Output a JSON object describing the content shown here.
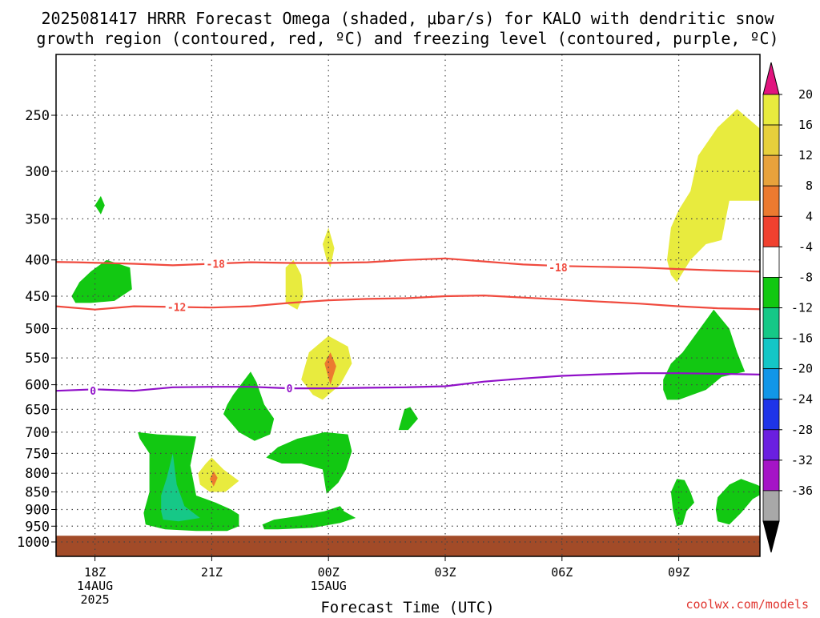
{
  "chart_data": {
    "type": "heatmap",
    "title": "2025081417 HRRR Forecast Omega (shaded, μbar/s) for KALO with dendritic snow growth region (contoured, red, ºC) and freezing level (contoured, purple, ºC)",
    "xlabel": "Forecast Time (UTC)",
    "ylabel": "",
    "source_label": "coolwx.com/models",
    "x_unit": "hours from 17Z 14AUG 2025",
    "x_ticks": [
      {
        "hour": 1,
        "label": "18Z",
        "sub": [
          "14AUG",
          "2025"
        ]
      },
      {
        "hour": 4,
        "label": "21Z",
        "sub": []
      },
      {
        "hour": 7,
        "label": "00Z",
        "sub": [
          "15AUG"
        ]
      },
      {
        "hour": 10,
        "label": "03Z",
        "sub": []
      },
      {
        "hour": 13,
        "label": "06Z",
        "sub": []
      },
      {
        "hour": 16,
        "label": "09Z",
        "sub": []
      }
    ],
    "xlim": [
      0,
      18.5
    ],
    "y_axis": "pressure (hPa), inverted",
    "y_ticks": [
      250,
      300,
      350,
      400,
      450,
      500,
      550,
      600,
      650,
      700,
      750,
      800,
      850,
      900,
      950,
      1000
    ],
    "ylim": [
      1000,
      200
    ],
    "grid": true,
    "colorbar": {
      "labels": [
        "20",
        "16",
        "12",
        "8",
        "4",
        "-4",
        "-8",
        "-12",
        "-16",
        "-20",
        "-24",
        "-28",
        "-32",
        "-36"
      ],
      "colors": [
        "#e8eb3e",
        "#e7d03c",
        "#e8a23c",
        "#ec7a30",
        "#f0412f",
        "#ffffff",
        "#12c812",
        "#16c887",
        "#14c6c6",
        "#1196e8",
        "#1e34e8",
        "#6a1fe0",
        "#a514c6",
        "#a8a8a8"
      ],
      "top_color": "#e1147e",
      "bottom_color": "#000000"
    },
    "omega_shading": [
      {
        "color": "#12c812",
        "points": [
          [
            1.0,
            335
          ],
          [
            1.15,
            325
          ],
          [
            1.25,
            335
          ],
          [
            1.15,
            345
          ]
        ]
      },
      {
        "color": "#12c812",
        "points": [
          [
            0.4,
            450
          ],
          [
            0.6,
            430
          ],
          [
            0.9,
            415
          ],
          [
            1.3,
            400
          ],
          [
            1.9,
            410
          ],
          [
            1.95,
            440
          ],
          [
            1.5,
            457
          ],
          [
            0.9,
            460
          ],
          [
            0.5,
            460
          ]
        ]
      },
      {
        "color": "#e8eb3e",
        "points": [
          [
            5.9,
            410
          ],
          [
            6.1,
            400
          ],
          [
            6.3,
            420
          ],
          [
            6.35,
            450
          ],
          [
            6.2,
            470
          ],
          [
            5.9,
            460
          ]
        ]
      },
      {
        "color": "#e8eb3e",
        "points": [
          [
            6.85,
            380
          ],
          [
            7.0,
            360
          ],
          [
            7.15,
            385
          ],
          [
            7.05,
            410
          ],
          [
            6.95,
            400
          ]
        ]
      },
      {
        "color": "#e8eb3e",
        "points": [
          [
            6.3,
            590
          ],
          [
            6.5,
            540
          ],
          [
            7.0,
            512
          ],
          [
            7.5,
            530
          ],
          [
            7.6,
            560
          ],
          [
            7.3,
            600
          ],
          [
            6.85,
            630
          ],
          [
            6.6,
            620
          ]
        ]
      },
      {
        "color": "#ec7a30",
        "points": [
          [
            6.9,
            560
          ],
          [
            7.05,
            540
          ],
          [
            7.2,
            565
          ],
          [
            7.05,
            600
          ]
        ]
      },
      {
        "color": "#12c812",
        "points": [
          [
            4.3,
            660
          ],
          [
            4.4,
            640
          ],
          [
            4.55,
            620
          ],
          [
            5.0,
            575
          ],
          [
            5.15,
            595
          ],
          [
            5.35,
            640
          ],
          [
            5.6,
            670
          ],
          [
            5.5,
            705
          ],
          [
            5.1,
            720
          ],
          [
            4.7,
            700
          ]
        ]
      },
      {
        "color": "#12c812",
        "points": [
          [
            8.8,
            695
          ],
          [
            8.95,
            650
          ],
          [
            9.1,
            645
          ],
          [
            9.3,
            670
          ],
          [
            9.05,
            695
          ]
        ]
      },
      {
        "color": "#12c812",
        "points": [
          [
            5.4,
            760
          ],
          [
            5.7,
            735
          ],
          [
            6.2,
            715
          ],
          [
            6.9,
            700
          ],
          [
            7.5,
            705
          ],
          [
            7.6,
            745
          ],
          [
            7.45,
            790
          ],
          [
            7.25,
            825
          ],
          [
            6.95,
            855
          ],
          [
            6.85,
            790
          ],
          [
            6.3,
            775
          ],
          [
            5.8,
            775
          ]
        ]
      },
      {
        "color": "#e8eb3e",
        "points": [
          [
            3.65,
            800
          ],
          [
            3.85,
            775
          ],
          [
            4.0,
            760
          ],
          [
            4.3,
            790
          ],
          [
            4.7,
            820
          ],
          [
            4.35,
            850
          ],
          [
            3.95,
            850
          ],
          [
            3.7,
            830
          ]
        ]
      },
      {
        "color": "#ec7a30",
        "points": [
          [
            3.95,
            815
          ],
          [
            4.05,
            795
          ],
          [
            4.15,
            812
          ],
          [
            4.05,
            835
          ]
        ]
      },
      {
        "color": "#12c812",
        "points": [
          [
            2.1,
            700
          ],
          [
            2.6,
            705
          ],
          [
            3.6,
            710
          ],
          [
            3.45,
            780
          ],
          [
            3.6,
            860
          ],
          [
            4.1,
            880
          ],
          [
            4.5,
            900
          ],
          [
            4.7,
            915
          ],
          [
            4.7,
            950
          ],
          [
            4.4,
            965
          ],
          [
            3.6,
            965
          ],
          [
            2.8,
            960
          ],
          [
            2.3,
            945
          ],
          [
            2.25,
            910
          ],
          [
            2.4,
            850
          ],
          [
            2.4,
            750
          ],
          [
            2.15,
            715
          ]
        ]
      },
      {
        "color": "#16c887",
        "points": [
          [
            2.7,
            860
          ],
          [
            2.85,
            810
          ],
          [
            3.0,
            750
          ],
          [
            3.1,
            830
          ],
          [
            3.3,
            890
          ],
          [
            3.7,
            925
          ],
          [
            3.15,
            935
          ],
          [
            2.75,
            930
          ],
          [
            2.7,
            905
          ]
        ]
      },
      {
        "color": "#12c812",
        "points": [
          [
            5.3,
            945
          ],
          [
            5.6,
            930
          ],
          [
            6.2,
            920
          ],
          [
            6.9,
            905
          ],
          [
            7.3,
            890
          ],
          [
            7.4,
            905
          ],
          [
            7.7,
            925
          ],
          [
            7.3,
            940
          ],
          [
            6.6,
            955
          ],
          [
            5.7,
            960
          ],
          [
            5.35,
            960
          ]
        ]
      },
      {
        "color": "#e8eb3e",
        "points": [
          [
            15.7,
            400
          ],
          [
            15.8,
            360
          ],
          [
            16.0,
            340
          ],
          [
            16.3,
            320
          ],
          [
            16.5,
            285
          ],
          [
            17.0,
            260
          ],
          [
            17.5,
            245
          ],
          [
            18.4,
            270
          ],
          [
            18.4,
            330
          ],
          [
            17.3,
            330
          ],
          [
            17.1,
            375
          ],
          [
            16.7,
            380
          ],
          [
            16.3,
            400
          ],
          [
            15.95,
            430
          ],
          [
            15.8,
            420
          ]
        ]
      },
      {
        "color": "#12c812",
        "points": [
          [
            15.6,
            590
          ],
          [
            15.8,
            560
          ],
          [
            16.1,
            540
          ],
          [
            16.6,
            495
          ],
          [
            16.9,
            470
          ],
          [
            17.3,
            500
          ],
          [
            17.5,
            540
          ],
          [
            17.7,
            575
          ],
          [
            17.1,
            585
          ],
          [
            16.7,
            610
          ],
          [
            16.0,
            630
          ],
          [
            15.7,
            630
          ],
          [
            15.6,
            610
          ]
        ]
      },
      {
        "color": "#12c812",
        "points": [
          [
            15.8,
            850
          ],
          [
            15.95,
            815
          ],
          [
            16.15,
            818
          ],
          [
            16.3,
            850
          ],
          [
            16.4,
            880
          ],
          [
            16.2,
            905
          ],
          [
            16.1,
            945
          ],
          [
            15.95,
            950
          ],
          [
            15.85,
            900
          ]
        ]
      },
      {
        "color": "#12c812",
        "points": [
          [
            17.0,
            865
          ],
          [
            17.3,
            830
          ],
          [
            17.6,
            815
          ],
          [
            18.0,
            830
          ],
          [
            18.3,
            845
          ],
          [
            17.9,
            870
          ],
          [
            17.6,
            910
          ],
          [
            17.3,
            945
          ],
          [
            17.0,
            935
          ],
          [
            16.95,
            900
          ]
        ]
      }
    ],
    "contours": [
      {
        "name": "-18",
        "color": "#f04a3e",
        "label": "-18",
        "label_points": [
          [
            4.1,
            405
          ],
          [
            12.9,
            410
          ]
        ],
        "points": [
          [
            -1,
            402
          ],
          [
            0.5,
            403
          ],
          [
            2,
            405
          ],
          [
            3,
            407
          ],
          [
            4,
            405
          ],
          [
            5,
            403
          ],
          [
            6,
            404
          ],
          [
            7,
            404
          ],
          [
            8,
            403
          ],
          [
            9,
            400
          ],
          [
            10,
            398
          ],
          [
            11,
            402
          ],
          [
            12,
            406
          ],
          [
            13,
            408
          ],
          [
            14,
            409
          ],
          [
            15,
            410
          ],
          [
            16,
            412
          ],
          [
            17,
            414
          ],
          [
            18.5,
            416
          ]
        ]
      },
      {
        "name": "-12",
        "color": "#f04a3e",
        "label": "-12",
        "label_points": [
          [
            3.1,
            466
          ]
        ],
        "points": [
          [
            -1,
            462
          ],
          [
            0,
            465
          ],
          [
            1,
            470
          ],
          [
            2,
            465
          ],
          [
            3,
            466
          ],
          [
            4,
            467
          ],
          [
            5,
            465
          ],
          [
            6,
            460
          ],
          [
            7,
            456
          ],
          [
            8,
            454
          ],
          [
            9,
            453
          ],
          [
            10,
            450
          ],
          [
            11,
            449
          ],
          [
            12,
            452
          ],
          [
            13,
            455
          ],
          [
            14,
            458
          ],
          [
            15,
            461
          ],
          [
            16,
            465
          ],
          [
            17,
            468
          ],
          [
            18.5,
            470
          ]
        ]
      },
      {
        "name": "0",
        "color": "#9010c8",
        "label": "0",
        "label_points": [
          [
            0.95,
            612
          ],
          [
            6.0,
            607
          ]
        ],
        "points": [
          [
            -1,
            615
          ],
          [
            0,
            612
          ],
          [
            1,
            609
          ],
          [
            2,
            612
          ],
          [
            3,
            605
          ],
          [
            4,
            604
          ],
          [
            5,
            604
          ],
          [
            6,
            607
          ],
          [
            7,
            607
          ],
          [
            8,
            606
          ],
          [
            9,
            605
          ],
          [
            10,
            603
          ],
          [
            11,
            594
          ],
          [
            12,
            588
          ],
          [
            13,
            583
          ],
          [
            14,
            580
          ],
          [
            15,
            578
          ],
          [
            16,
            578
          ],
          [
            17,
            579
          ],
          [
            18.5,
            581
          ]
        ]
      }
    ],
    "surface": {
      "color": "#a24b28",
      "from_hpa": 980
    }
  }
}
